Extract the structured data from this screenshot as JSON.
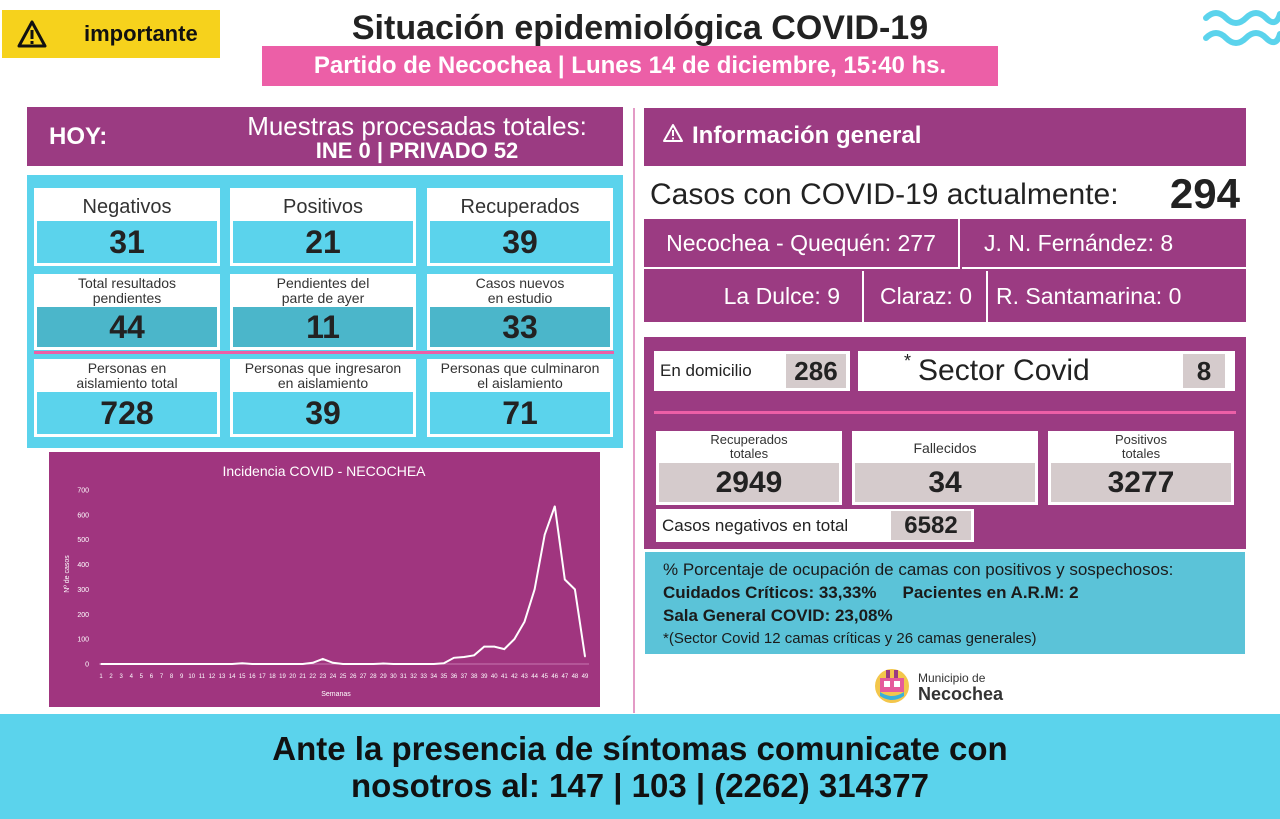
{
  "header": {
    "badge": "importante",
    "title": "Situación epidemiológica COVID-19",
    "subtitle": "Partido de Necochea | Lunes 14 de diciembre, 15:40 hs.",
    "accent_pink": "#ec5fa7",
    "accent_purple": "#9b3b82",
    "accent_cyan": "#5bd3ec",
    "badge_color": "#f6d21c"
  },
  "hoy": {
    "label": "HOY:",
    "line1": "Muestras procesadas totales:",
    "line2": "INE 0 | PRIVADO 52"
  },
  "stats": [
    {
      "label": "Negativos",
      "value": "31"
    },
    {
      "label": "Positivos",
      "value": "21"
    },
    {
      "label": "Recuperados",
      "value": "39"
    },
    {
      "label1": "Total resultados",
      "label2": "pendientes",
      "value": "44"
    },
    {
      "label1": "Pendientes del",
      "label2": "parte de ayer",
      "value": "11"
    },
    {
      "label1": "Casos nuevos",
      "label2": "en estudio",
      "value": "33"
    },
    {
      "label1": "Personas en",
      "label2": "aislamiento total",
      "value": "728"
    },
    {
      "label1": "Personas que ingresaron",
      "label2": "en aislamiento",
      "value": "39"
    },
    {
      "label1": "Personas que culminaron",
      "label2": "el aislamiento",
      "value": "71"
    }
  ],
  "chart_data": {
    "type": "line",
    "title": "Incidencia COVID - NECOCHEA",
    "xlabel": "Semanas",
    "ylabel": "Nº de casos",
    "ylim": [
      0,
      700
    ],
    "yticks": [
      0,
      100,
      200,
      300,
      400,
      500,
      600,
      700
    ],
    "x": [
      1,
      2,
      3,
      4,
      5,
      6,
      7,
      8,
      9,
      10,
      11,
      12,
      13,
      14,
      15,
      16,
      17,
      18,
      19,
      20,
      21,
      22,
      23,
      24,
      25,
      26,
      27,
      28,
      29,
      30,
      31,
      32,
      33,
      34,
      35,
      36,
      37,
      38,
      39,
      40,
      41,
      42,
      43,
      44,
      45,
      46,
      47,
      48,
      49
    ],
    "values": [
      0,
      0,
      0,
      0,
      0,
      0,
      0,
      0,
      0,
      0,
      0,
      0,
      0,
      0,
      3,
      0,
      0,
      0,
      0,
      0,
      0,
      5,
      20,
      5,
      0,
      0,
      0,
      0,
      2,
      0,
      0,
      0,
      0,
      0,
      3,
      25,
      28,
      35,
      70,
      70,
      60,
      100,
      170,
      300,
      520,
      635,
      340,
      300,
      30
    ],
    "grid": false,
    "legend": "none",
    "line_color": "#ffffff",
    "background": "#a0357f"
  },
  "info": {
    "title": "Información general",
    "casos_label": "Casos con COVID-19 actualmente:",
    "casos_value": "294",
    "locations": [
      "Necochea - Quequén: 277",
      "J. N. Fernández: 8",
      "La Dulce: 9",
      "Claraz: 0",
      "R. Santamarina: 0"
    ],
    "domicilio_label": "En domicilio",
    "domicilio_value": "286",
    "sector_star": "*",
    "sector_label": "Sector Covid",
    "sector_value": "8",
    "totals": [
      {
        "label1": "Recuperados",
        "label2": "totales",
        "value": "2949"
      },
      {
        "label1": "Fallecidos",
        "label2": "",
        "value": "34"
      },
      {
        "label1": "Positivos",
        "label2": "totales",
        "value": "3277"
      }
    ],
    "negativos_label": "Casos negativos en total",
    "negativos_value": "6582"
  },
  "camas": {
    "line1": "% Porcentaje de ocupación de camas con positivos y sospechosos:",
    "line2a": "Cuidados Críticos: 33,33%",
    "line2b": "Pacientes en A.R.M: 2",
    "line3": "Sala General COVID: 23,08%",
    "line4": "*(Sector Covid 12 camas críticas y 26 camas generales)"
  },
  "logo": {
    "line1": "Municipio de",
    "line2": "Necochea"
  },
  "footer": {
    "line1": "Ante la presencia de síntomas comunicate con",
    "line2": "nosotros al: 147 | 103 | (2262) 314377"
  }
}
